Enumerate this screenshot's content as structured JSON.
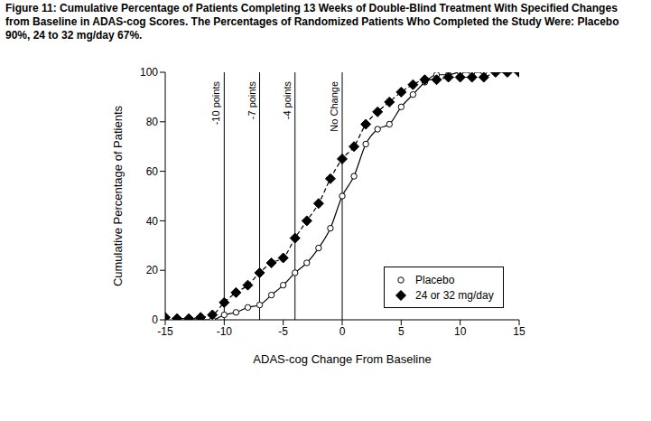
{
  "chart_data": {
    "type": "line",
    "title": "Figure 11:  Cumulative Percentage of Patients Completing 13 Weeks of Double-Blind Treatment With Specified Changes from Baseline in ADAS-cog Scores. The Percentages of Randomized Patients Who Completed the Study Were: Placebo 90%, 24 to 32 mg/day 67%.",
    "x_label": "ADAS-cog Change From Baseline",
    "y_label": "Cumulative Percentage of Patients",
    "x": [
      -15,
      -14,
      -13,
      -12,
      -11,
      -10,
      -9,
      -8,
      -7,
      -6,
      -5,
      -4,
      -3,
      -2,
      -1,
      0,
      1,
      2,
      3,
      4,
      5,
      6,
      7,
      8,
      9,
      10,
      11,
      12,
      13,
      14,
      15
    ],
    "series": [
      {
        "name": "Placebo",
        "color": "#000000",
        "marker": "circle",
        "line_style": "solid",
        "values": [
          null,
          null,
          0,
          0,
          0,
          2,
          3,
          5,
          6,
          10,
          14,
          19,
          23,
          29,
          37,
          50,
          58,
          71,
          77,
          79,
          86,
          91,
          96,
          99,
          99,
          100,
          100,
          100,
          null,
          null,
          null
        ]
      },
      {
        "name": "24 or 32 mg/day",
        "color": "#000000",
        "marker": "diamond",
        "line_style": "dashed",
        "values": [
          1,
          0.5,
          0.5,
          1,
          2,
          7,
          11,
          14,
          19,
          23,
          25,
          33,
          40,
          47,
          57,
          65,
          70,
          79,
          84,
          88,
          92,
          95,
          97,
          97,
          98,
          98,
          98,
          98,
          100,
          100,
          100
        ]
      }
    ],
    "xlim": [
      -15,
      15
    ],
    "xticks": [
      -15,
      -10,
      -5,
      0,
      5,
      10,
      15
    ],
    "ylim": [
      0,
      100
    ],
    "yticks": [
      0,
      20,
      40,
      60,
      80,
      100
    ],
    "annotations": [
      {
        "x": -10,
        "label": "-10 points"
      },
      {
        "x": -7,
        "label": "-7 points"
      },
      {
        "x": -4,
        "label": "-4 points"
      },
      {
        "x": 0,
        "label": "No Change"
      }
    ],
    "grid": false,
    "legend": "lower right"
  }
}
